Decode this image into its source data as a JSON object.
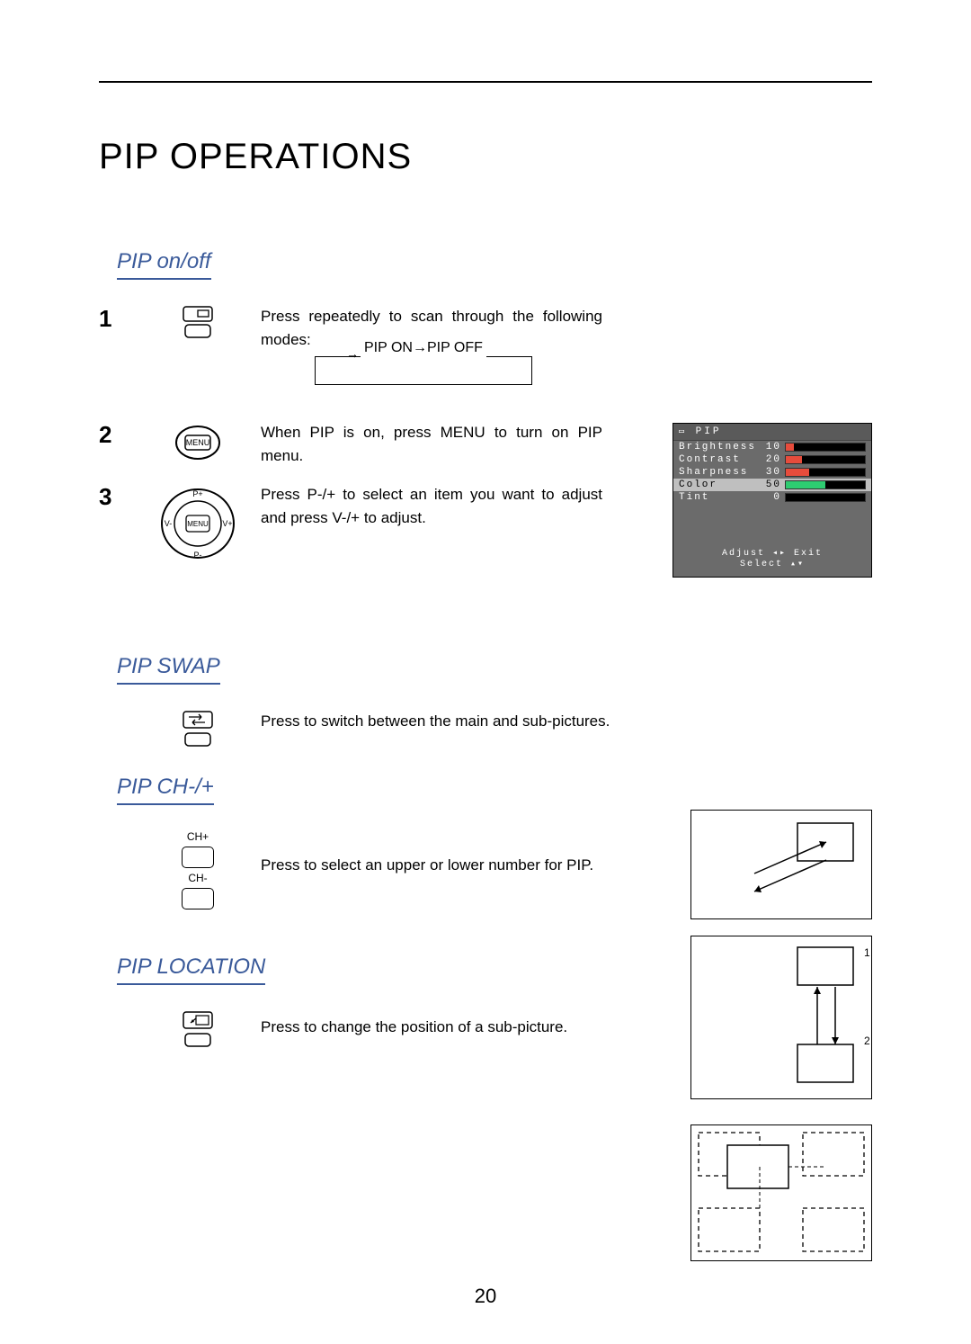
{
  "title": "PIP OPERATIONS",
  "page_number": "20",
  "sections": {
    "onoff": {
      "label": "PIP on/off",
      "steps": {
        "s1": {
          "num": "1",
          "desc": "Press repeatedly to scan through the following modes:"
        },
        "s2": {
          "num": "2",
          "desc": "When PIP is on, press MENU to turn on PIP menu."
        },
        "s3": {
          "num": "3",
          "desc": "Press P-/+ to select an item you want to adjust and press V-/+ to adjust."
        }
      },
      "cycle": "PIP ON→PIP OFF"
    },
    "swap": {
      "label": "PIP SWAP",
      "desc": "Press to switch between the main and sub-pictures."
    },
    "ch": {
      "label": "PIP CH-/+",
      "desc": "Press to select an upper or lower number for PIP.",
      "btn_up": "CH+",
      "btn_dn": "CH-",
      "note1": "1",
      "note2": "2"
    },
    "loc": {
      "label": "PIP LOCATION",
      "desc": "Press to change the position of a sub-picture."
    }
  },
  "osd": {
    "title": "PIP",
    "rows": [
      {
        "label": "Brightness",
        "value": "10",
        "fill": 10,
        "color": "r"
      },
      {
        "label": "Contrast",
        "value": "20",
        "fill": 20,
        "color": "r"
      },
      {
        "label": "Sharpness",
        "value": "30",
        "fill": 30,
        "color": "r"
      },
      {
        "label": "Color",
        "value": "50",
        "fill": 50,
        "color": "g",
        "hl": true
      },
      {
        "label": "Tint",
        "value": "0",
        "fill": 0,
        "color": "r"
      }
    ],
    "footer_left": "Adjust",
    "footer_right": "Exit",
    "footer_select": "Select"
  },
  "icons": {
    "menu": "MENU",
    "pplus": "P+",
    "pminus": "P-",
    "vplus": "V+",
    "vminus": "V-"
  },
  "colors": {
    "section_blue": "#3a5a9a",
    "osd_bg": "#6b6b6b",
    "bar_red": "#e74c3c",
    "bar_green": "#2ecc71"
  }
}
